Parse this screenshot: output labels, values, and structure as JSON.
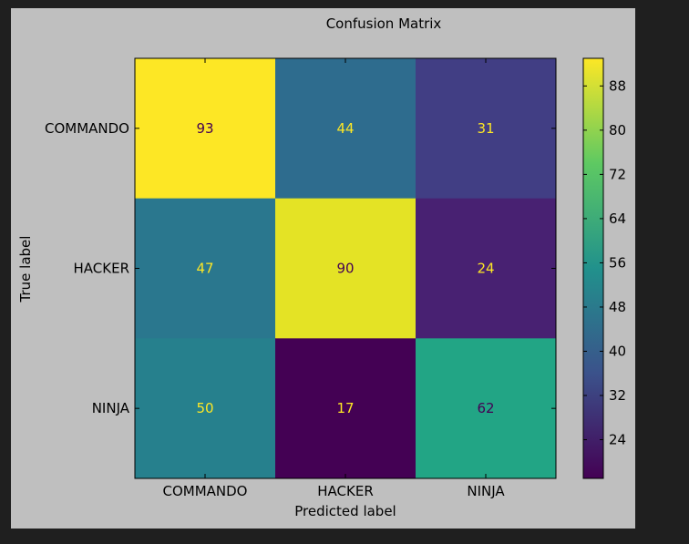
{
  "chart_data": {
    "type": "heatmap",
    "title": "Confusion Matrix",
    "xlabel": "Predicted label",
    "ylabel": "True label",
    "x_categories": [
      "COMMANDO",
      "HACKER",
      "NINJA"
    ],
    "y_categories": [
      "COMMANDO",
      "HACKER",
      "NINJA"
    ],
    "values": [
      [
        93,
        44,
        31
      ],
      [
        47,
        90,
        24
      ],
      [
        50,
        17,
        62
      ]
    ],
    "colormap": "viridis",
    "value_range": [
      17,
      93
    ],
    "colorbar_ticks": [
      24,
      32,
      40,
      48,
      56,
      64,
      72,
      80,
      88
    ]
  }
}
